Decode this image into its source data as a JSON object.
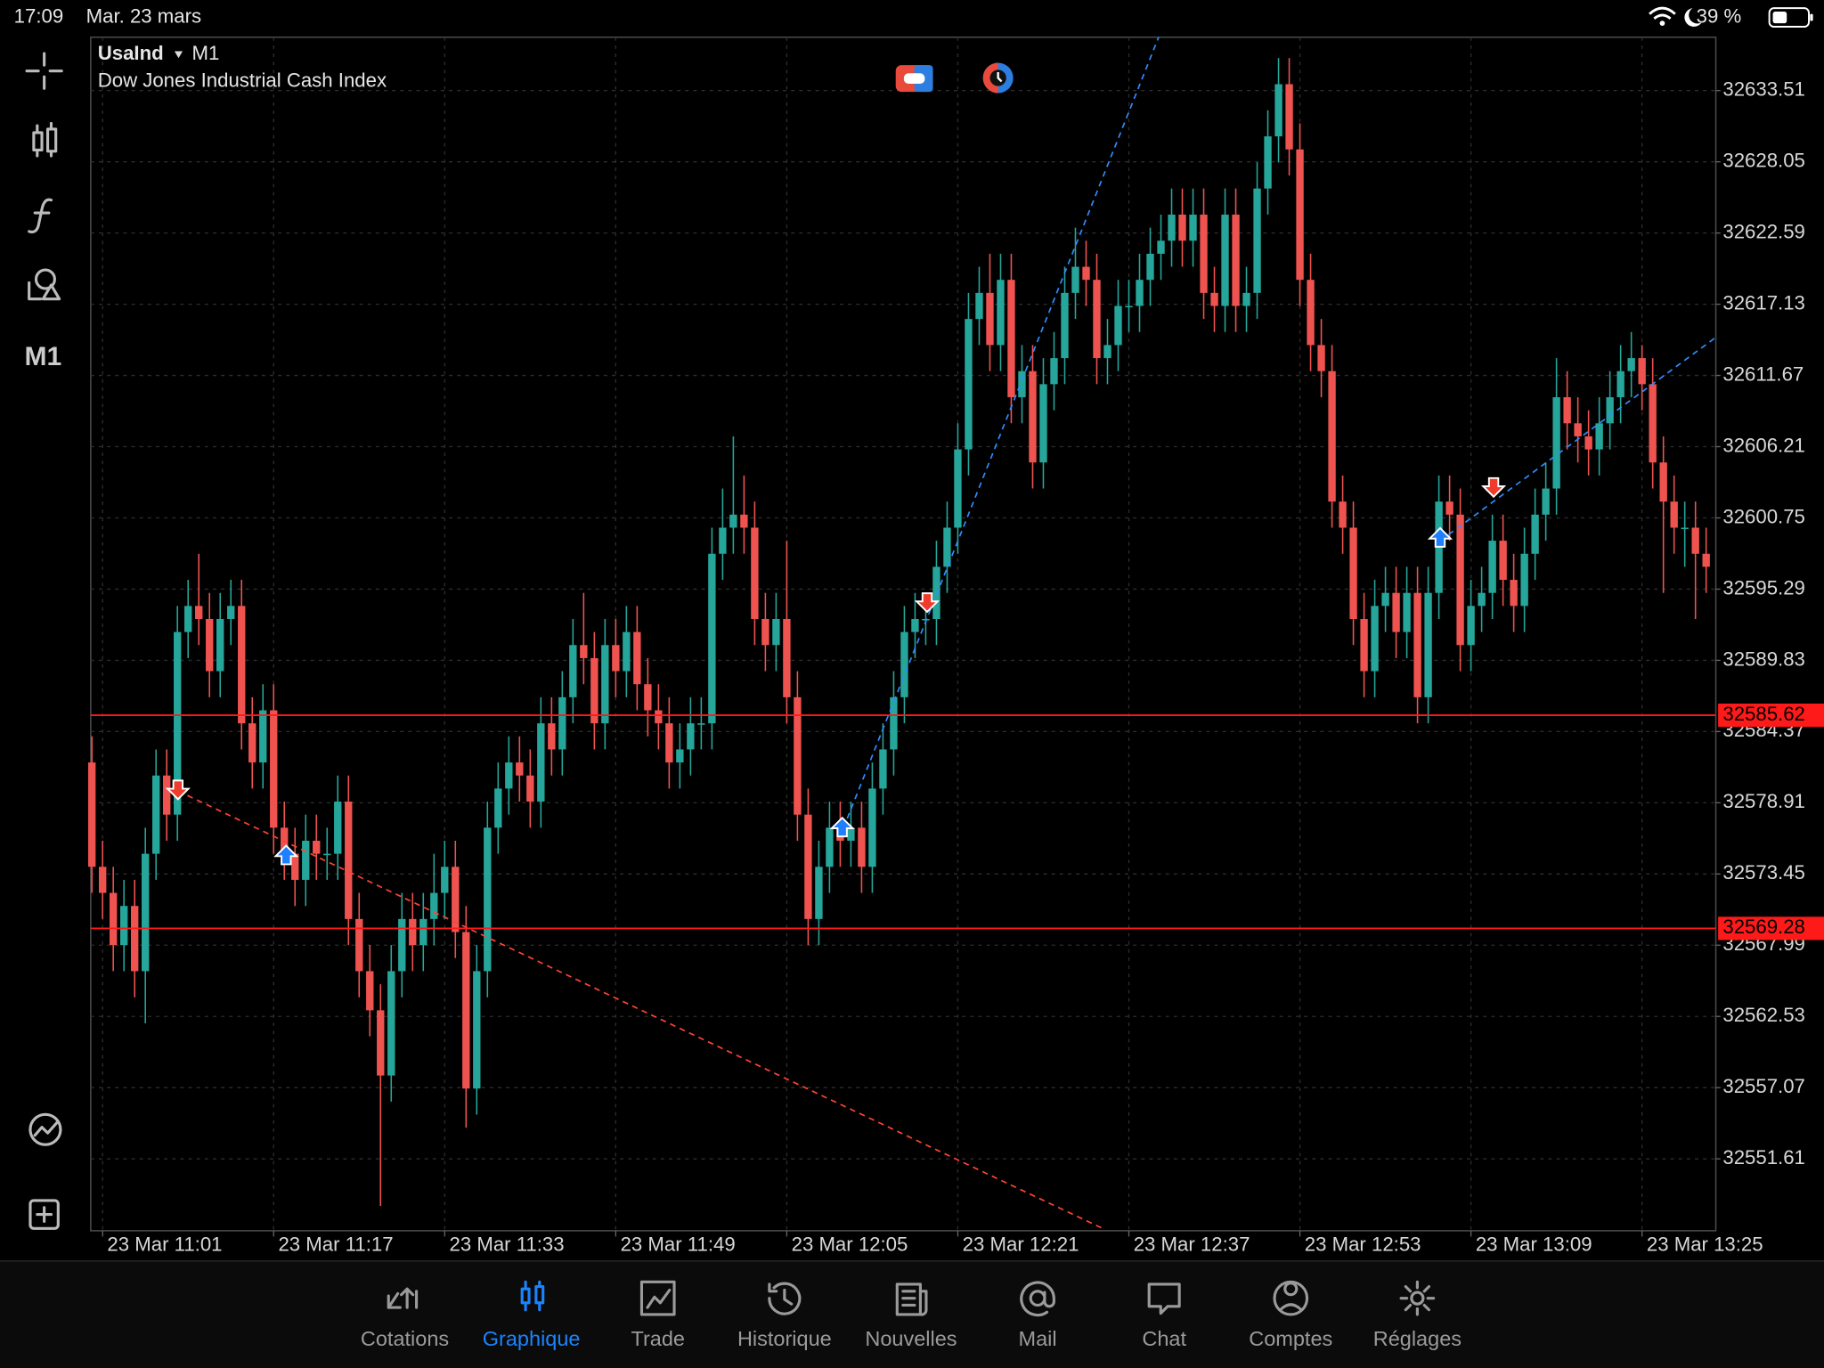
{
  "status_bar": {
    "time": "17:09",
    "date": "Mar. 23 mars",
    "battery": "39 %"
  },
  "chart_header": {
    "symbol": "UsaInd",
    "timeframe": "M1",
    "description": "Dow Jones Industrial Cash Index"
  },
  "toolbar": {
    "timeframe": "M1"
  },
  "tabs": [
    "Cotations",
    "Graphique",
    "Trade",
    "Historique",
    "Nouvelles",
    "Mail",
    "Chat",
    "Comptes",
    "Réglages"
  ],
  "active_tab": 1,
  "chart_data": {
    "type": "candlestick",
    "up_color": "#26a69a",
    "down_color": "#ef5350",
    "grid": true,
    "ylim": [
      32546.1,
      32637.6
    ],
    "yticks": [
      32633.51,
      32628.05,
      32622.59,
      32617.13,
      32611.67,
      32606.21,
      32600.75,
      32595.29,
      32589.83,
      32584.37,
      32578.91,
      32573.45,
      32567.99,
      32562.53,
      32557.07,
      32551.61
    ],
    "xticks": [
      {
        "value": 1,
        "label": "23 Mar 11:01"
      },
      {
        "value": 17,
        "label": "23 Mar 11:17"
      },
      {
        "value": 33,
        "label": "23 Mar 11:33"
      },
      {
        "value": 49,
        "label": "23 Mar 11:49"
      },
      {
        "value": 65,
        "label": "23 Mar 12:05"
      },
      {
        "value": 81,
        "label": "23 Mar 12:21"
      },
      {
        "value": 97,
        "label": "23 Mar 12:37"
      },
      {
        "value": 113,
        "label": "23 Mar 12:53"
      },
      {
        "value": 129,
        "label": "23 Mar 13:09"
      },
      {
        "value": 145,
        "label": "23 Mar 13:25"
      }
    ],
    "price_lines": [
      {
        "value": 32585.62,
        "color": "#ff1a1a"
      },
      {
        "value": 32569.28,
        "color": "#ff1a1a"
      }
    ],
    "open": [
      32582,
      32574,
      32572,
      32568,
      32571,
      32566,
      32575,
      32581,
      32578,
      32592,
      32594,
      32593,
      32589,
      32593,
      32594,
      32585,
      32582,
      32586,
      32577,
      32575,
      32573,
      32576,
      32575,
      32575,
      32579,
      32570,
      32566,
      32563,
      32558,
      32566,
      32570,
      32568,
      32570,
      32572,
      32574,
      32569,
      32557,
      32566,
      32577,
      32580,
      32582,
      32581,
      32579,
      32585,
      32583,
      32587,
      32591,
      32590,
      32585,
      32591,
      32589,
      32592,
      32588,
      32586,
      32585,
      32582,
      32583,
      32585,
      32585,
      32598,
      32600,
      32601,
      32600,
      32593,
      32591,
      32593,
      32587,
      32578,
      32570,
      32574,
      32577,
      32576,
      32577,
      32574,
      32580,
      32583,
      32587,
      32592,
      32593,
      32593,
      32597,
      32600,
      32606,
      32616,
      32618,
      32614,
      32619,
      32610,
      32612,
      32605,
      32611,
      32613,
      32618,
      32620,
      32619,
      32613,
      32614,
      32617,
      32617,
      32619,
      32621,
      32622,
      32624,
      32622,
      32624,
      32618,
      32617,
      32624,
      32617,
      32618,
      32626,
      32630,
      32634,
      32629,
      32619,
      32614,
      32612,
      32602,
      32600,
      32593,
      32589,
      32594,
      32595,
      32592,
      32595,
      32587,
      32595,
      32602,
      32601,
      32591,
      32594,
      32595,
      32599,
      32596,
      32594,
      32598,
      32601,
      32603,
      32610,
      32608,
      32607,
      32606,
      32608,
      32610,
      32612,
      32613,
      32611,
      32605,
      32602,
      32600,
      32600,
      32598
    ],
    "high": [
      32584,
      32576,
      32574,
      32573,
      32573,
      32577,
      32583,
      32583,
      32594,
      32596,
      32598,
      32595,
      32595,
      32596,
      32596,
      32587,
      32588,
      32588,
      32579,
      32577,
      32578,
      32578,
      32577,
      32581,
      32581,
      32572,
      32568,
      32565,
      32568,
      32572,
      32572,
      32572,
      32575,
      32576,
      32576,
      32571,
      32568,
      32579,
      32582,
      32584,
      32584,
      32583,
      32587,
      32587,
      32589,
      32593,
      32595,
      32592,
      32593,
      32593,
      32594,
      32594,
      32590,
      32588,
      32587,
      32585,
      32587,
      32587,
      32600,
      32603,
      32607,
      32604,
      32602,
      32595,
      32595,
      32599,
      32589,
      32580,
      32576,
      32579,
      32579,
      32579,
      32579,
      32582,
      32585,
      32589,
      32594,
      32595,
      32595,
      32599,
      32602,
      32608,
      32618,
      32620,
      32621,
      32621,
      32621,
      32614,
      32614,
      32613,
      32615,
      32620,
      32623,
      32622,
      32621,
      32616,
      32619,
      32619,
      32621,
      32623,
      32624,
      32626,
      32626,
      32626,
      32626,
      32620,
      32626,
      32626,
      32620,
      32628,
      32632,
      32636,
      32636,
      32631,
      32621,
      32616,
      32614,
      32604,
      32602,
      32595,
      32596,
      32597,
      32597,
      32597,
      32597,
      32597,
      32604,
      32604,
      32603,
      32596,
      32597,
      32601,
      32601,
      32598,
      32600,
      32603,
      32605,
      32613,
      32612,
      32610,
      32609,
      32610,
      32612,
      32614,
      32615,
      32614,
      32613,
      32607,
      32604,
      32602,
      32602,
      32600
    ],
    "low": [
      32572,
      32570,
      32566,
      32566,
      32564,
      32562,
      32573,
      32576,
      32576,
      32590,
      32591,
      32587,
      32587,
      32591,
      32583,
      32580,
      32580,
      32575,
      32573,
      32571,
      32571,
      32573,
      32573,
      32573,
      32568,
      32564,
      32561,
      32548,
      32556,
      32564,
      32566,
      32566,
      32568,
      32570,
      32567,
      32554,
      32555,
      32564,
      32575,
      32578,
      32579,
      32577,
      32577,
      32581,
      32581,
      32585,
      32588,
      32583,
      32583,
      32587,
      32587,
      32586,
      32584,
      32583,
      32580,
      32580,
      32581,
      32583,
      32583,
      32596,
      32598,
      32598,
      32591,
      32589,
      32589,
      32585,
      32576,
      32568,
      32568,
      32572,
      32574,
      32574,
      32572,
      32572,
      32578,
      32581,
      32585,
      32590,
      32591,
      32591,
      32595,
      32598,
      32604,
      32614,
      32612,
      32612,
      32608,
      32608,
      32603,
      32603,
      32609,
      32611,
      32616,
      32617,
      32611,
      32611,
      32612,
      32615,
      32615,
      32617,
      32619,
      32620,
      32620,
      32620,
      32616,
      32615,
      32615,
      32615,
      32615,
      32616,
      32624,
      32628,
      32627,
      32617,
      32612,
      32610,
      32600,
      32598,
      32591,
      32587,
      32587,
      32592,
      32590,
      32590,
      32585,
      32585,
      32593,
      32599,
      32589,
      32589,
      32592,
      32593,
      32594,
      32592,
      32592,
      32596,
      32599,
      32601,
      32606,
      32605,
      32604,
      32604,
      32606,
      32608,
      32610,
      32609,
      32603,
      32595,
      32598,
      32597,
      32593,
      32595
    ],
    "close": [
      32574,
      32572,
      32568,
      32571,
      32566,
      32575,
      32581,
      32578,
      32592,
      32594,
      32593,
      32589,
      32593,
      32594,
      32585,
      32582,
      32586,
      32577,
      32575,
      32573,
      32576,
      32575,
      32575,
      32579,
      32570,
      32566,
      32563,
      32558,
      32566,
      32570,
      32568,
      32570,
      32572,
      32574,
      32569,
      32557,
      32566,
      32577,
      32580,
      32582,
      32581,
      32579,
      32585,
      32583,
      32587,
      32591,
      32590,
      32585,
      32591,
      32589,
      32592,
      32588,
      32586,
      32585,
      32582,
      32583,
      32585,
      32585,
      32598,
      32600,
      32601,
      32600,
      32593,
      32591,
      32593,
      32587,
      32578,
      32570,
      32574,
      32577,
      32576,
      32577,
      32574,
      32580,
      32583,
      32587,
      32592,
      32593,
      32593,
      32597,
      32600,
      32606,
      32616,
      32618,
      32614,
      32619,
      32610,
      32612,
      32605,
      32611,
      32613,
      32618,
      32620,
      32619,
      32613,
      32614,
      32617,
      32617,
      32619,
      32621,
      32622,
      32624,
      32622,
      32624,
      32618,
      32617,
      32624,
      32617,
      32618,
      32626,
      32630,
      32634,
      32629,
      32619,
      32614,
      32612,
      32602,
      32600,
      32593,
      32589,
      32594,
      32595,
      32592,
      32595,
      32587,
      32595,
      32602,
      32601,
      32591,
      32594,
      32595,
      32599,
      32596,
      32594,
      32598,
      32601,
      32603,
      32610,
      32608,
      32607,
      32606,
      32608,
      32610,
      32612,
      32613,
      32611,
      32605,
      32602,
      32600,
      32600,
      32598,
      32597
    ]
  }
}
